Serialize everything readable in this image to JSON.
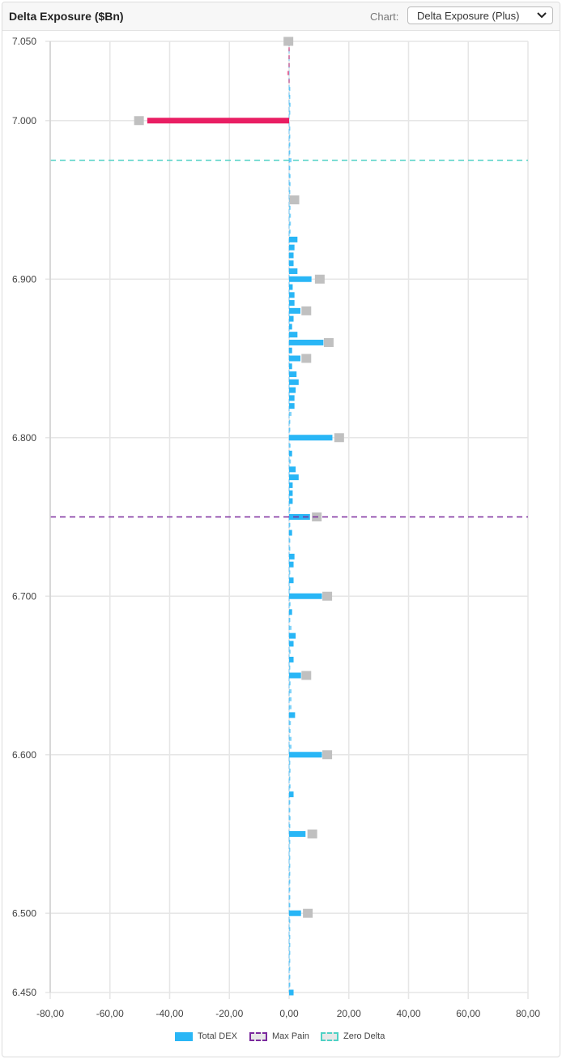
{
  "header": {
    "title": "Delta Exposure ($Bn)",
    "chart_label": "Chart:",
    "chart_select_value": "Delta Exposure (Plus)"
  },
  "legend": [
    {
      "label": "Total DEX",
      "color": "#29b6f6",
      "style": "solid"
    },
    {
      "label": "Max Pain",
      "color": "#7b2a9e",
      "style": "dashed"
    },
    {
      "label": "Zero Delta",
      "color": "#4fd1c5",
      "style": "dashed"
    }
  ],
  "colors": {
    "positive": "#29b6f6",
    "negative": "#e91e63",
    "marker": "#c0c0c0",
    "grid": "#e6e6e6",
    "max_pain": "#7b2a9e",
    "zero_delta": "#4fd1c5"
  },
  "chart_data": {
    "type": "bar",
    "orientation": "horizontal",
    "title": "Delta Exposure ($Bn)",
    "xlabel": "",
    "ylabel": "",
    "xlim": [
      -80,
      80
    ],
    "ylim": [
      6.45,
      7.05
    ],
    "x_ticks": [
      "-80,00",
      "-60,00",
      "-40,00",
      "-20,00",
      "0,00",
      "20,00",
      "40,00",
      "60,00",
      "80,00"
    ],
    "y_ticks": [
      "7.050",
      "7.000",
      "6.900",
      "6.800",
      "6.700",
      "6.600",
      "6.500",
      "6.450"
    ],
    "grid": true,
    "legend_position": "bottom",
    "max_pain": 6.75,
    "zero_delta": 6.975,
    "series": [
      {
        "name": "Total DEX",
        "points": [
          {
            "strike": 7.05,
            "value": 0.0,
            "marker": -0.5
          },
          {
            "strike": 7.045,
            "value": -0.2
          },
          {
            "strike": 7.04,
            "value": -0.2
          },
          {
            "strike": 7.035,
            "value": -0.2
          },
          {
            "strike": 7.03,
            "value": -0.6
          },
          {
            "strike": 7.025,
            "value": -0.2
          },
          {
            "strike": 7.02,
            "value": 0.2
          },
          {
            "strike": 7.015,
            "value": 0.2
          },
          {
            "strike": 7.01,
            "value": 0.5
          },
          {
            "strike": 7.005,
            "value": 0.2
          },
          {
            "strike": 7.0,
            "value": -47.5,
            "marker": -50.0
          },
          {
            "strike": 6.995,
            "value": 0.2
          },
          {
            "strike": 6.99,
            "value": 0.2
          },
          {
            "strike": 6.985,
            "value": 0.2
          },
          {
            "strike": 6.98,
            "value": 0.2
          },
          {
            "strike": 6.975,
            "value": 0.8
          },
          {
            "strike": 6.97,
            "value": 0.2
          },
          {
            "strike": 6.965,
            "value": 0.5
          },
          {
            "strike": 6.96,
            "value": 0.5
          },
          {
            "strike": 6.955,
            "value": 0.3
          },
          {
            "strike": 6.95,
            "value": 0.6,
            "marker": 1.5
          },
          {
            "strike": 6.945,
            "value": 0.5
          },
          {
            "strike": 6.94,
            "value": 0.6
          },
          {
            "strike": 6.935,
            "value": 0.6
          },
          {
            "strike": 6.93,
            "value": 0.5
          },
          {
            "strike": 6.925,
            "value": 2.8
          },
          {
            "strike": 6.92,
            "value": 1.8
          },
          {
            "strike": 6.915,
            "value": 1.5
          },
          {
            "strike": 6.91,
            "value": 1.5
          },
          {
            "strike": 6.905,
            "value": 2.8
          },
          {
            "strike": 6.9,
            "value": 7.5,
            "marker": 10.0
          },
          {
            "strike": 6.895,
            "value": 1.2
          },
          {
            "strike": 6.89,
            "value": 1.8
          },
          {
            "strike": 6.885,
            "value": 1.8
          },
          {
            "strike": 6.88,
            "value": 3.8,
            "marker": 5.5
          },
          {
            "strike": 6.875,
            "value": 1.5
          },
          {
            "strike": 6.87,
            "value": 1.0
          },
          {
            "strike": 6.865,
            "value": 2.8
          },
          {
            "strike": 6.86,
            "value": 11.5,
            "marker": 13.0
          },
          {
            "strike": 6.855,
            "value": 1.0
          },
          {
            "strike": 6.85,
            "value": 3.8,
            "marker": 5.5
          },
          {
            "strike": 6.845,
            "value": 1.0
          },
          {
            "strike": 6.84,
            "value": 2.5
          },
          {
            "strike": 6.835,
            "value": 3.2
          },
          {
            "strike": 6.83,
            "value": 2.2
          },
          {
            "strike": 6.825,
            "value": 1.8
          },
          {
            "strike": 6.82,
            "value": 1.8
          },
          {
            "strike": 6.815,
            "value": 0.8
          },
          {
            "strike": 6.81,
            "value": 0.4
          },
          {
            "strike": 6.805,
            "value": 0.4
          },
          {
            "strike": 6.8,
            "value": 14.5,
            "marker": 16.5
          },
          {
            "strike": 6.795,
            "value": 0.5
          },
          {
            "strike": 6.79,
            "value": 1.0
          },
          {
            "strike": 6.785,
            "value": 0.6
          },
          {
            "strike": 6.78,
            "value": 2.2
          },
          {
            "strike": 6.775,
            "value": 3.2
          },
          {
            "strike": 6.77,
            "value": 1.2
          },
          {
            "strike": 6.765,
            "value": 1.2
          },
          {
            "strike": 6.76,
            "value": 1.2
          },
          {
            "strike": 6.755,
            "value": 0.4
          },
          {
            "strike": 6.75,
            "value": 7.0,
            "marker": 9.0
          },
          {
            "strike": 6.745,
            "value": 0.2
          },
          {
            "strike": 6.74,
            "value": 1.0
          },
          {
            "strike": 6.735,
            "value": 0.4
          },
          {
            "strike": 6.73,
            "value": 0.4
          },
          {
            "strike": 6.725,
            "value": 1.8
          },
          {
            "strike": 6.72,
            "value": 1.5
          },
          {
            "strike": 6.715,
            "value": 0.4
          },
          {
            "strike": 6.71,
            "value": 1.5
          },
          {
            "strike": 6.705,
            "value": 0.4
          },
          {
            "strike": 6.7,
            "value": 11.0,
            "marker": 12.5
          },
          {
            "strike": 6.695,
            "value": 0.5
          },
          {
            "strike": 6.69,
            "value": 1.0
          },
          {
            "strike": 6.685,
            "value": 0.4
          },
          {
            "strike": 6.68,
            "value": 0.8
          },
          {
            "strike": 6.675,
            "value": 2.2
          },
          {
            "strike": 6.67,
            "value": 1.5
          },
          {
            "strike": 6.665,
            "value": 0.5
          },
          {
            "strike": 6.66,
            "value": 1.5
          },
          {
            "strike": 6.655,
            "value": 0.2
          },
          {
            "strike": 6.65,
            "value": 4.0,
            "marker": 5.5
          },
          {
            "strike": 6.645,
            "value": 0.5
          },
          {
            "strike": 6.64,
            "value": 0.8
          },
          {
            "strike": 6.635,
            "value": 0.8
          },
          {
            "strike": 6.63,
            "value": 0.8
          },
          {
            "strike": 6.625,
            "value": 2.0
          },
          {
            "strike": 6.62,
            "value": 0.6
          },
          {
            "strike": 6.615,
            "value": 0.5
          },
          {
            "strike": 6.61,
            "value": 0.8
          },
          {
            "strike": 6.605,
            "value": 0.8
          },
          {
            "strike": 6.6,
            "value": 11.0,
            "marker": 12.5
          },
          {
            "strike": 6.595,
            "value": 0.3
          },
          {
            "strike": 6.59,
            "value": 0.5
          },
          {
            "strike": 6.585,
            "value": 0.3
          },
          {
            "strike": 6.58,
            "value": 0.5
          },
          {
            "strike": 6.575,
            "value": 1.5
          },
          {
            "strike": 6.57,
            "value": 0.4
          },
          {
            "strike": 6.565,
            "value": 0.2
          },
          {
            "strike": 6.56,
            "value": 0.5
          },
          {
            "strike": 6.555,
            "value": 0.2
          },
          {
            "strike": 6.55,
            "value": 5.5,
            "marker": 7.5
          },
          {
            "strike": 6.545,
            "value": 0.2
          },
          {
            "strike": 6.54,
            "value": 0.3
          },
          {
            "strike": 6.535,
            "value": 0.2
          },
          {
            "strike": 6.53,
            "value": 0.4
          },
          {
            "strike": 6.525,
            "value": 0.3
          },
          {
            "strike": 6.52,
            "value": 0.3
          },
          {
            "strike": 6.515,
            "value": 0.4
          },
          {
            "strike": 6.51,
            "value": 0.2
          },
          {
            "strike": 6.505,
            "value": 0.2
          },
          {
            "strike": 6.5,
            "value": 4.0,
            "marker": 6.0
          },
          {
            "strike": 6.495,
            "value": 0.1
          },
          {
            "strike": 6.49,
            "value": 0.1
          },
          {
            "strike": 6.485,
            "value": 0.2
          },
          {
            "strike": 6.48,
            "value": 0.1
          },
          {
            "strike": 6.475,
            "value": 0.4
          },
          {
            "strike": 6.47,
            "value": 0.1
          },
          {
            "strike": 6.465,
            "value": 0.2
          },
          {
            "strike": 6.46,
            "value": 0.2
          },
          {
            "strike": 6.455,
            "value": 0.1
          },
          {
            "strike": 6.45,
            "value": 1.5
          }
        ]
      }
    ]
  }
}
